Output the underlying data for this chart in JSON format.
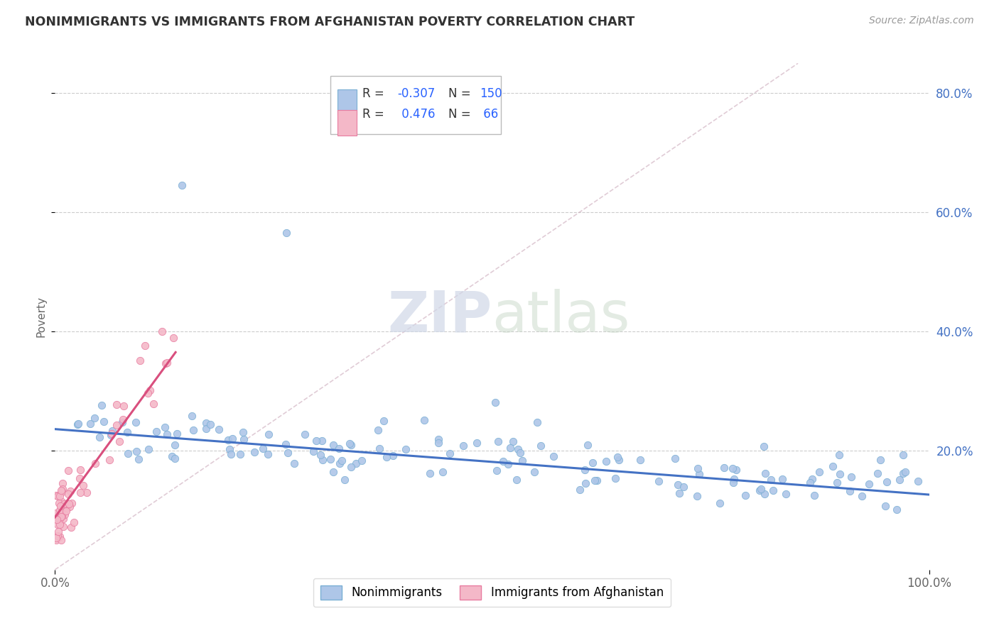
{
  "title": "NONIMMIGRANTS VS IMMIGRANTS FROM AFGHANISTAN POVERTY CORRELATION CHART",
  "source_text": "Source: ZipAtlas.com",
  "ylabel": "Poverty",
  "xmin": 0.0,
  "xmax": 1.0,
  "ymin": 0.0,
  "ymax": 0.85,
  "y_tick_positions_right": [
    0.2,
    0.4,
    0.6,
    0.8
  ],
  "y_tick_labels_right": [
    "20.0%",
    "40.0%",
    "60.0%",
    "80.0%"
  ],
  "nonimmigrant_color": "#aec6e8",
  "nonimmigrant_edge_color": "#7aafd4",
  "immigrant_color": "#f4b8c8",
  "immigrant_edge_color": "#e87ca0",
  "trendline_blue": "#4472c4",
  "trendline_pink": "#d94f7e",
  "trendline_dashed_color": "#ccaabb",
  "R_nonimmigrant": -0.307,
  "N_nonimmigrant": 150,
  "R_immigrant": 0.476,
  "N_immigrant": 66,
  "legend_label_nonimmigrant": "Nonimmigrants",
  "legend_label_immigrant": "Immigrants from Afghanistan",
  "watermark_ZIP": "ZIP",
  "watermark_atlas": "atlas",
  "background_color": "#ffffff",
  "grid_color": "#cccccc",
  "title_color": "#333333",
  "label_color": "#666666",
  "legend_r_color": "#2962ff",
  "nonimmigrant_scatter_seed": 42,
  "immigrant_scatter_seed": 7
}
